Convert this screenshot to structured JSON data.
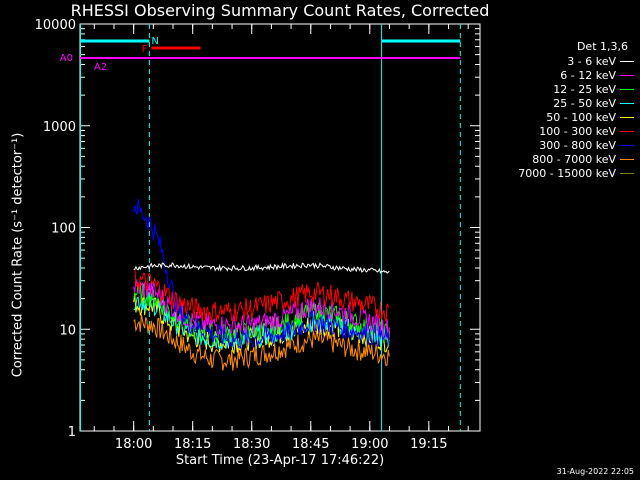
{
  "chart_data": {
    "type": "line",
    "title": "RHESSI Observing Summary Count Rates, Corrected",
    "xlabel": "Start Time (23-Apr-17 17:46:22)",
    "ylabel": "Corrected Count Rate (s⁻¹ detector⁻¹)",
    "yscale": "log",
    "ylim": [
      1,
      10000
    ],
    "xlim": [
      "17:46:22",
      "19:28:00"
    ],
    "x_ticks": [
      "18:00",
      "18:15",
      "18:30",
      "18:45",
      "19:00",
      "19:15"
    ],
    "y_ticks": [
      "1",
      "10",
      "100",
      "1000",
      "10000"
    ],
    "legend_title": "Det 1,3,6",
    "legend_placement": "right",
    "series": [
      {
        "name": "3 - 6 keV",
        "color": "#ffffff",
        "x": [
          "18:00",
          "18:05",
          "18:10",
          "18:15",
          "18:20",
          "18:25",
          "18:30",
          "18:35",
          "18:40",
          "18:45",
          "18:50",
          "18:55",
          "19:00",
          "19:05"
        ],
        "values": [
          40,
          42,
          43,
          41,
          40,
          40,
          40,
          41,
          42,
          43,
          41,
          39,
          38,
          36
        ]
      },
      {
        "name": "6 - 12 keV",
        "color": "#ff00ff",
        "x": [
          "18:00",
          "18:05",
          "18:10",
          "18:15",
          "18:20",
          "18:25",
          "18:30",
          "18:35",
          "18:40",
          "18:45",
          "18:50",
          "18:55",
          "19:00",
          "19:05"
        ],
        "values": [
          26,
          24,
          16,
          12,
          11,
          11,
          11,
          12,
          14,
          17,
          16,
          14,
          12,
          10
        ]
      },
      {
        "name": "12 - 25 keV",
        "color": "#00ff00",
        "x": [
          "18:00",
          "18:05",
          "18:10",
          "18:15",
          "18:20",
          "18:25",
          "18:30",
          "18:35",
          "18:40",
          "18:45",
          "18:50",
          "18:55",
          "19:00",
          "19:05"
        ],
        "values": [
          23,
          21,
          14,
          10,
          9,
          9,
          9.5,
          10,
          12,
          15,
          14,
          12,
          10,
          9
        ]
      },
      {
        "name": "25 - 50 keV",
        "color": "#00ffff",
        "x": [
          "18:00",
          "18:05",
          "18:10",
          "18:15",
          "18:20",
          "18:25",
          "18:30",
          "18:35",
          "18:40",
          "18:45",
          "18:50",
          "18:55",
          "19:00",
          "19:05"
        ],
        "values": [
          20,
          18,
          12,
          9,
          8,
          8,
          8.5,
          9,
          10,
          12,
          12,
          10,
          9,
          8
        ]
      },
      {
        "name": "50 - 100 keV",
        "color": "#ffff00",
        "x": [
          "18:00",
          "18:05",
          "18:10",
          "18:15",
          "18:20",
          "18:25",
          "18:30",
          "18:35",
          "18:40",
          "18:45",
          "18:50",
          "18:55",
          "19:00",
          "19:05"
        ],
        "values": [
          18,
          17,
          11,
          8.5,
          7.5,
          7.5,
          8,
          8.5,
          9.5,
          11,
          11,
          9.5,
          8.5,
          7.5
        ]
      },
      {
        "name": "100 - 300 keV",
        "color": "#ff0000",
        "x": [
          "18:00",
          "18:05",
          "18:10",
          "18:15",
          "18:20",
          "18:25",
          "18:30",
          "18:35",
          "18:40",
          "18:45",
          "18:50",
          "18:55",
          "19:00",
          "19:05"
        ],
        "values": [
          31,
          28,
          20,
          16,
          15,
          15,
          16,
          18,
          20,
          23,
          22,
          19,
          17,
          15
        ]
      },
      {
        "name": "300 - 800 keV",
        "color": "#0000ff",
        "x": [
          "18:00",
          "18:02",
          "18:04",
          "18:06",
          "18:08",
          "18:10",
          "18:12",
          "18:15",
          "18:20",
          "18:25",
          "18:30",
          "18:35",
          "18:40",
          "18:45",
          "18:50",
          "18:55",
          "19:00",
          "19:05"
        ],
        "values": [
          170,
          140,
          115,
          80,
          45,
          22,
          14,
          11,
          9,
          8,
          8,
          8.5,
          9.5,
          12,
          11,
          10,
          9,
          8
        ]
      },
      {
        "name": "800 - 7000 keV",
        "color": "#ff8c00",
        "x": [
          "18:00",
          "18:05",
          "18:10",
          "18:15",
          "18:20",
          "18:25",
          "18:30",
          "18:35",
          "18:40",
          "18:45",
          "18:50",
          "18:55",
          "19:00",
          "19:05"
        ],
        "values": [
          12,
          11,
          8,
          6,
          5,
          5,
          5.5,
          6,
          7,
          8,
          7.5,
          6.5,
          6,
          5.5
        ]
      },
      {
        "name": "7000 - 15000 keV",
        "color": "#808000",
        "x": [],
        "values": []
      }
    ],
    "annotations": {
      "N": {
        "label": "N",
        "color": "#00ffff",
        "segments": [
          [
            "17:46:22",
            "18:04:00"
          ],
          [
            "19:03:00",
            "19:23:00"
          ]
        ]
      },
      "F": {
        "label": "F",
        "color": "#ff0000",
        "segments": [
          [
            "18:04:00",
            "18:17:00"
          ]
        ]
      },
      "A0": {
        "label": "A0",
        "color": "#ff00ff",
        "segments": [
          [
            "17:46:22",
            "19:23:00"
          ]
        ]
      },
      "A2": {
        "label": "A2",
        "color": "#ff00ff",
        "segments": [
          [
            "19:13:00",
            "19:13:30"
          ]
        ]
      }
    },
    "vertical_lines": [
      {
        "time": "17:46:30",
        "style": "solid",
        "color": "#00ffff"
      },
      {
        "time": "18:04:00",
        "style": "dashed",
        "color": "#00ffff"
      },
      {
        "time": "19:03:00",
        "style": "solid",
        "color": "#00ffff"
      },
      {
        "time": "19:23:00",
        "style": "dashed",
        "color": "#00ffff"
      }
    ]
  },
  "footer": {
    "stamp": "31-Aug-2022 22:05"
  }
}
